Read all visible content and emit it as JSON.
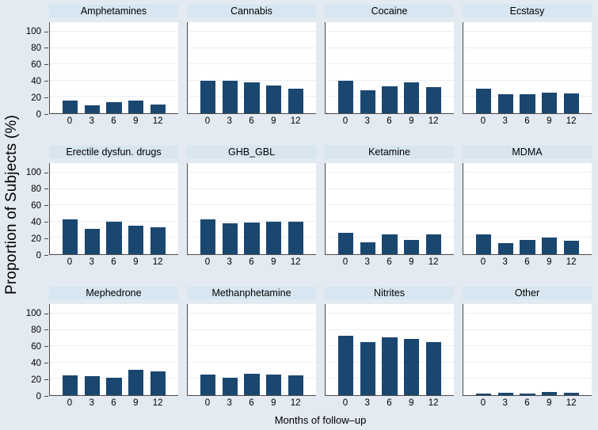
{
  "figure": {
    "background_color": "#e3eaf1",
    "panel_title_band_color": "#d7e6f0",
    "plot_background_color": "#ffffff",
    "gridline_color": "#e9eef3",
    "axis_line_color": "#4a4a4a"
  },
  "chart_data": {
    "type": "bar",
    "layout": "small-multiples 3 rows x 4 columns",
    "title": "",
    "x_axis_label": "Months of follow–up",
    "y_axis_label": "Proportion of Subjects (%)",
    "categories": [
      "0",
      "3",
      "6",
      "9",
      "12"
    ],
    "yticks": [
      0,
      20,
      40,
      60,
      80,
      100
    ],
    "ylim": [
      0,
      112
    ],
    "grid": true,
    "legend": "none",
    "bar_color": "#1a476f",
    "panels": [
      {
        "title": "Amphetamines",
        "values": [
          16,
          10,
          14,
          16,
          11
        ]
      },
      {
        "title": "Cannabis",
        "values": [
          40,
          40,
          38,
          34,
          30
        ]
      },
      {
        "title": "Cocaine",
        "values": [
          40,
          28,
          33,
          38,
          32
        ]
      },
      {
        "title": "Ecstasy",
        "values": [
          30,
          23,
          23,
          25,
          24
        ]
      },
      {
        "title": "Erectile dysfun. drugs",
        "values": [
          43,
          31,
          40,
          35,
          33
        ]
      },
      {
        "title": "GHB_GBL",
        "values": [
          43,
          38,
          39,
          40,
          40
        ]
      },
      {
        "title": "Ketamine",
        "values": [
          26,
          15,
          24,
          18,
          24
        ]
      },
      {
        "title": "MDMA",
        "values": [
          24,
          14,
          18,
          20,
          17
        ]
      },
      {
        "title": "Mephedrone",
        "values": [
          24,
          23,
          21,
          31,
          29
        ]
      },
      {
        "title": "Methanphetamine",
        "values": [
          25,
          21,
          26,
          25,
          24
        ]
      },
      {
        "title": "Nitrites",
        "values": [
          73,
          65,
          71,
          69,
          65
        ]
      },
      {
        "title": "Other",
        "values": [
          2,
          3,
          2,
          4,
          3
        ]
      }
    ]
  }
}
